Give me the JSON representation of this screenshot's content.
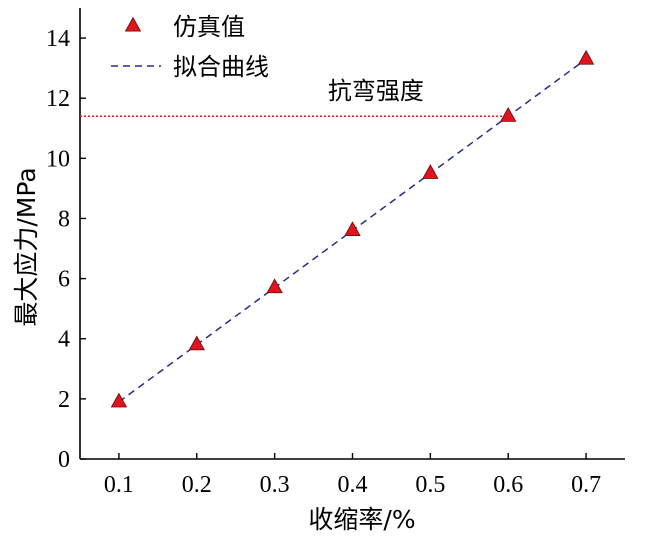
{
  "chart_data": {
    "type": "scatter",
    "xlabel": "收缩率/%",
    "ylabel": "最大应力/MPa",
    "xlim": [
      0.05,
      0.75
    ],
    "ylim": [
      0,
      15
    ],
    "x_ticks": [
      0.1,
      0.2,
      0.3,
      0.4,
      0.5,
      0.6,
      0.7
    ],
    "x_tick_labels": [
      "0.1",
      "0.2",
      "0.3",
      "0.4",
      "0.5",
      "0.6",
      "0.7"
    ],
    "y_ticks": [
      0,
      2,
      4,
      6,
      8,
      10,
      12,
      14
    ],
    "y_tick_labels": [
      "0",
      "2",
      "4",
      "6",
      "8",
      "10",
      "12",
      "14"
    ],
    "grid": false,
    "legend_position": "top-left",
    "series": [
      {
        "name": "仿真值",
        "kind": "markers",
        "marker": "triangle",
        "color": "#e0141e",
        "x": [
          0.1,
          0.2,
          0.3,
          0.4,
          0.5,
          0.6,
          0.7
        ],
        "y": [
          1.9,
          3.8,
          5.7,
          7.6,
          9.5,
          11.4,
          13.3
        ]
      },
      {
        "name": "拟合曲线",
        "kind": "line",
        "style": "dashed",
        "color": "#2a2a8c",
        "x": [
          0.1,
          0.7
        ],
        "y": [
          1.9,
          13.3
        ]
      }
    ],
    "annotations": [
      {
        "label": "抗弯强度",
        "kind": "hline",
        "style": "dotted",
        "color": "#e0141e",
        "y": 11.4,
        "x_range": [
          0.05,
          0.6
        ]
      }
    ]
  }
}
